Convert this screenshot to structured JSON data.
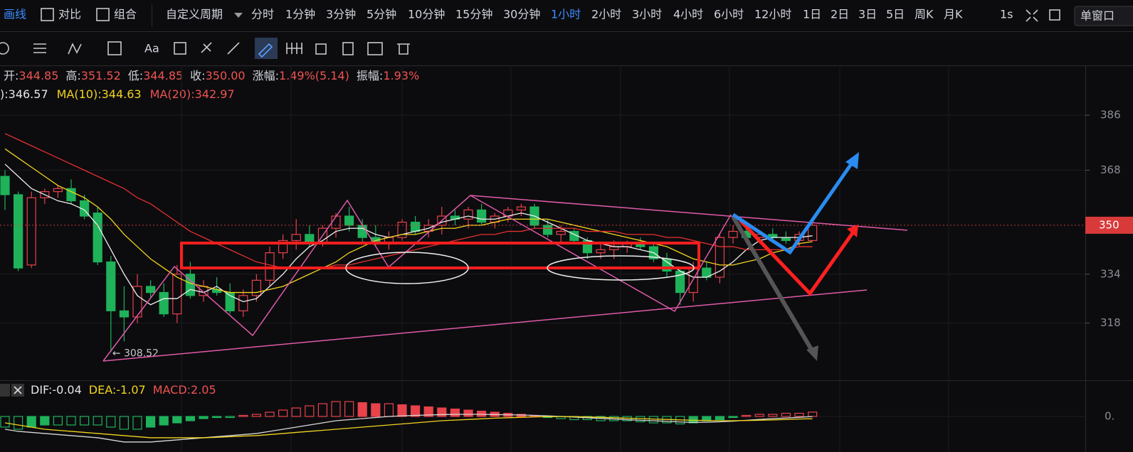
{
  "toolbar": {
    "draw": "画线",
    "compare": "对比",
    "combo": "组合",
    "custom_period": "自定义周期",
    "periods": [
      "分时",
      "1分钟",
      "3分钟",
      "5分钟",
      "10分钟",
      "15分钟",
      "30分钟",
      "1小时",
      "2小时",
      "3小时",
      "4小时",
      "6小时",
      "12小时",
      "1日",
      "2日",
      "3日",
      "5日",
      "周K",
      "月K"
    ],
    "active_period": "1小时",
    "speed": "1s",
    "window": "单窗口"
  },
  "toolbar2": {
    "text_tool": "Aa"
  },
  "quote": {
    "open_label": "开:",
    "open": "344.85",
    "high_label": "高:",
    "high": "351.52",
    "low_label": "低:",
    "low": "344.85",
    "close_label": "收:",
    "close": "350.00",
    "change_label": "涨幅:",
    "change": "1.49%(5.14)",
    "amplitude_label": "振幅:",
    "amplitude": "1.93%"
  },
  "chart_data": {
    "type": "candlestick",
    "up_color": "#e8424a",
    "down_color": "#1fb25a",
    "open": [
      366,
      360,
      337,
      359,
      361,
      362,
      358,
      354,
      338,
      322,
      320,
      330,
      328,
      321,
      334,
      327,
      329,
      328,
      322,
      327,
      332,
      341,
      345,
      347,
      344,
      349,
      353,
      350,
      346,
      344,
      346,
      351,
      348,
      350,
      353,
      352,
      355,
      351,
      353,
      355,
      356,
      350,
      347,
      348,
      345,
      341,
      342,
      343,
      344,
      343,
      339,
      335,
      328,
      336,
      333,
      346,
      348,
      346,
      347,
      346,
      345,
      345
    ],
    "high": [
      368,
      361,
      361,
      362,
      363,
      365,
      360,
      356,
      340,
      330,
      334,
      332,
      331,
      337,
      338,
      332,
      333,
      331,
      329,
      334,
      343,
      347,
      352,
      350,
      350,
      354,
      356,
      352,
      350,
      348,
      352,
      353,
      352,
      356,
      355,
      356,
      357,
      354,
      356,
      357,
      357,
      352,
      350,
      349,
      346,
      344,
      345,
      345,
      346,
      344,
      341,
      336,
      338,
      338,
      347,
      350,
      350,
      348,
      349,
      348,
      348,
      352
    ],
    "low": [
      355,
      335,
      336,
      357,
      359,
      357,
      352,
      337,
      308.52,
      312,
      318,
      326,
      320,
      318,
      326,
      325,
      327,
      321,
      320,
      325,
      330,
      339,
      342,
      343,
      343,
      346,
      348,
      344,
      343,
      342,
      345,
      347,
      346,
      347,
      350,
      349,
      350,
      349,
      351,
      353,
      349,
      346,
      344,
      344,
      339,
      339,
      339,
      341,
      342,
      338,
      333,
      324,
      325,
      332,
      331,
      344,
      345,
      344,
      345,
      344,
      343,
      345
    ],
    "close": [
      360,
      336,
      359,
      361,
      362,
      358,
      353,
      338,
      322,
      320,
      330,
      328,
      321,
      334,
      327,
      330,
      328,
      322,
      327,
      332,
      341,
      345,
      347,
      344,
      349,
      353,
      350,
      346,
      344,
      346,
      351,
      348,
      350,
      353,
      352,
      355,
      351,
      353,
      355,
      356,
      350,
      347,
      348,
      345,
      341,
      342,
      343,
      344,
      343,
      339,
      335,
      328,
      336,
      333,
      346,
      348,
      346,
      347,
      346,
      345,
      347,
      350
    ],
    "ma": [
      {
        "legend": "):346.57",
        "color": "#f0f0f0",
        "values": [
          370,
          366,
          362,
          360,
          358,
          357,
          355,
          350,
          342,
          334,
          327,
          324,
          326,
          326,
          329,
          328,
          330,
          327,
          325,
          326,
          330,
          334,
          339,
          343,
          345,
          348,
          349,
          349,
          347,
          346,
          347,
          348,
          349,
          351,
          352,
          353,
          352,
          352,
          353,
          354,
          353,
          351,
          349,
          347,
          345,
          344,
          343,
          343,
          342,
          341,
          338,
          335,
          333,
          333,
          335,
          338,
          342,
          345,
          346,
          346,
          346,
          346.57
        ]
      },
      {
        "legend": "MA(10):344.63",
        "color": "#f2d41c",
        "values": [
          375,
          372,
          369,
          366,
          363,
          361,
          359,
          356,
          352,
          347,
          343,
          339,
          336,
          333,
          331,
          330,
          329,
          328,
          328,
          328,
          329,
          330,
          332,
          334,
          336,
          338,
          341,
          343,
          345,
          346,
          347,
          347,
          348,
          349,
          349,
          350,
          350,
          351,
          352,
          352,
          352,
          352,
          351,
          350,
          349,
          348,
          347,
          346,
          345,
          344,
          343,
          341,
          339,
          338,
          337,
          337,
          338,
          339,
          341,
          342,
          344,
          344.63
        ]
      },
      {
        "legend": "MA(20):342.97",
        "color": "#e5302f",
        "values": [
          380,
          378,
          376,
          374,
          372,
          370,
          368,
          366,
          364,
          362,
          359,
          357,
          354,
          351,
          348,
          346,
          344,
          342,
          340,
          338,
          337,
          336,
          336,
          336,
          336,
          337,
          337,
          338,
          339,
          340,
          341,
          342,
          343,
          344,
          345,
          346,
          347,
          347,
          348,
          348,
          349,
          349,
          349,
          349,
          348,
          348,
          348,
          347,
          347,
          347,
          346,
          346,
          345,
          344,
          343,
          343,
          342,
          342,
          342,
          342,
          343,
          342.97
        ]
      }
    ],
    "ylim": [
      299.3,
      402.3
    ],
    "yticks": [
      318,
      334,
      368,
      386
    ],
    "price_badge": 350,
    "low_label": "← 308.52",
    "macd": {
      "ylim": [
        -16.7,
        16.7
      ],
      "yticks": [
        {
          "value": 0,
          "label": "0."
        }
      ],
      "hist": [
        -5,
        -6,
        -5,
        -4,
        -4,
        -4,
        -4,
        -4,
        -5,
        -6,
        -6,
        -5,
        -4,
        -3,
        -2,
        -1,
        -0.5,
        -0.5,
        0.5,
        1,
        2,
        3,
        4,
        5,
        6,
        7,
        7,
        6.5,
        6,
        6,
        5.5,
        5,
        4.5,
        4,
        3.5,
        3,
        2.5,
        2,
        1.5,
        1,
        0.5,
        -0.5,
        -1,
        -1.5,
        -1.5,
        -2,
        -2,
        -2,
        -2.5,
        -3,
        -3,
        -3.5,
        -3,
        -2,
        -1.5,
        -0.5,
        0.5,
        1,
        1,
        1.5,
        1.5,
        2.05
      ],
      "series": [
        {
          "legend": "DIF:-0.04",
          "color": "#d8d8d8",
          "values": [
            -6,
            -7,
            -7.5,
            -8,
            -8.5,
            -9,
            -9.5,
            -10,
            -11,
            -12,
            -12,
            -12,
            -11.5,
            -11,
            -10.5,
            -10,
            -9.5,
            -9,
            -8.5,
            -8,
            -7,
            -6,
            -5,
            -4,
            -3,
            -2,
            -1.5,
            -1,
            -0.5,
            0,
            0.3,
            0.5,
            0.7,
            0.9,
            1,
            1,
            1,
            0.9,
            0.8,
            0.7,
            0.5,
            0.3,
            0,
            -0.3,
            -0.6,
            -0.9,
            -1.2,
            -1.5,
            -1.8,
            -2,
            -2.3,
            -2.6,
            -2.8,
            -2.7,
            -2.5,
            -2.2,
            -1.8,
            -1.4,
            -1,
            -0.7,
            -0.4,
            -0.04
          ]
        },
        {
          "legend": "DEA:-1.07",
          "color": "#f2d41c",
          "values": [
            -3,
            -4,
            -5,
            -6,
            -6.5,
            -7,
            -7.5,
            -8,
            -8.5,
            -9,
            -9.5,
            -10,
            -10,
            -10,
            -10,
            -10,
            -9.8,
            -9.5,
            -9.2,
            -9,
            -8.5,
            -8,
            -7.5,
            -7,
            -6.5,
            -6,
            -5.5,
            -5,
            -4.5,
            -4,
            -3.5,
            -3,
            -2.5,
            -2,
            -1.7,
            -1.4,
            -1.1,
            -0.8,
            -0.6,
            -0.4,
            -0.2,
            -0.1,
            0,
            -0.1,
            -0.2,
            -0.4,
            -0.6,
            -0.8,
            -1,
            -1.2,
            -1.4,
            -1.6,
            -1.8,
            -1.9,
            -2,
            -2,
            -1.9,
            -1.8,
            -1.6,
            -1.4,
            -1.2,
            -1.07
          ]
        }
      ],
      "hist_legend": "MACD:2.05"
    }
  }
}
